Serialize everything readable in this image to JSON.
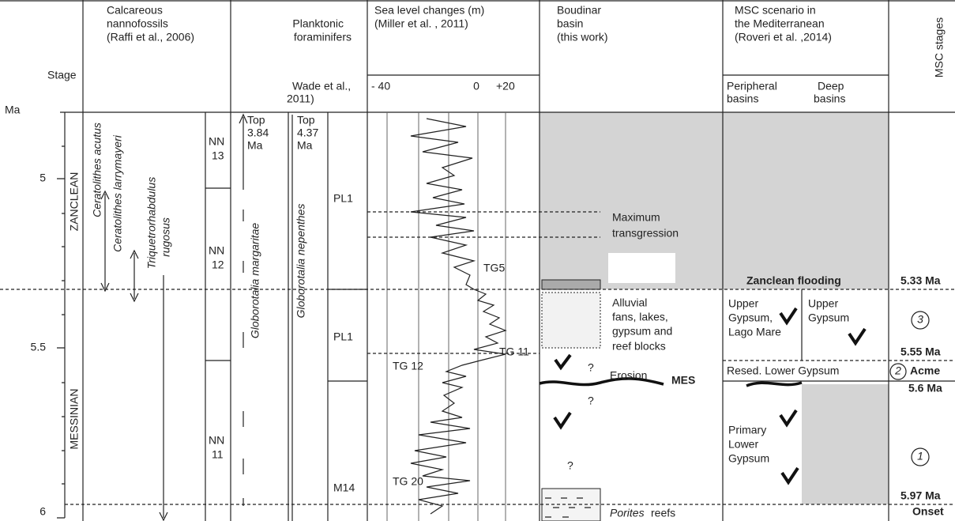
{
  "axis": {
    "stage_label": "Stage",
    "unit": "Ma",
    "ticks": [
      "5",
      "5.5",
      "6"
    ]
  },
  "stages": [
    "ZANCLEAN",
    "MESSINIAN"
  ],
  "nannofossils": {
    "title": [
      "Calcareous",
      "nannofossils",
      "(Raffi et al., 2006)"
    ],
    "species": [
      "Ceratolithes acutus",
      "Ceratolithes larrymayeri",
      "Triquetrorhabdulus",
      "rugosus"
    ],
    "zones": [
      [
        "NN",
        "13"
      ],
      [
        "NN",
        "12"
      ],
      [
        "NN",
        "11"
      ]
    ]
  },
  "foraminifers": {
    "title": [
      "Planktonic",
      "foraminifers"
    ],
    "reference": [
      "Wade et al.,",
      "2011)"
    ],
    "species": [
      "Globorotalia margaritae",
      "Globorotalia nepenthes"
    ],
    "tops": [
      [
        "Top",
        "3.84",
        "Ma"
      ],
      [
        "Top",
        "4.37",
        "Ma"
      ]
    ],
    "zones": [
      "PL1",
      "PL1",
      "M14"
    ]
  },
  "sea_level": {
    "title": [
      "Sea level changes (m)",
      "(Miller et al. , 2011)"
    ],
    "ticks": [
      "- 40",
      "0",
      "+20"
    ],
    "labels": [
      "TG5",
      "TG 11",
      "TG 12",
      "TG 20"
    ]
  },
  "boudinar": {
    "title": [
      "Boudinar",
      "basin",
      "(this work)"
    ],
    "transgression": [
      "Maximum",
      "transgression"
    ],
    "deposits": [
      "Alluvial",
      "fans, lakes,",
      "gypsum and",
      "reef blocks"
    ],
    "erosion": "Erosion",
    "mes": "MES",
    "questions": [
      "?",
      "?",
      "?"
    ],
    "reefs": [
      "Porites",
      "reefs"
    ]
  },
  "msc": {
    "title": [
      "MSC scenario in",
      "the Mediterranean",
      "(Roveri et al. ,2014)"
    ],
    "subheads": [
      [
        "Peripheral",
        "basins"
      ],
      [
        "Deep",
        "basins"
      ]
    ],
    "flooding": "Zanclean flooding",
    "upper_peripheral": [
      "Upper",
      "Gypsum,",
      "Lago Mare"
    ],
    "upper_deep": [
      "Upper",
      "Gypsum"
    ],
    "resedimented": "Resed. Lower Gypsum",
    "primary": [
      "Primary",
      "Lower",
      "Gypsum"
    ]
  },
  "msc_stages": {
    "title": "MSC stages",
    "stages": [
      "3",
      "2",
      "1"
    ],
    "ages": [
      "5.33 Ma",
      "5.55 Ma",
      "5.6 Ma",
      "5.97 Ma"
    ],
    "names": [
      "Acme",
      "Onset"
    ]
  }
}
